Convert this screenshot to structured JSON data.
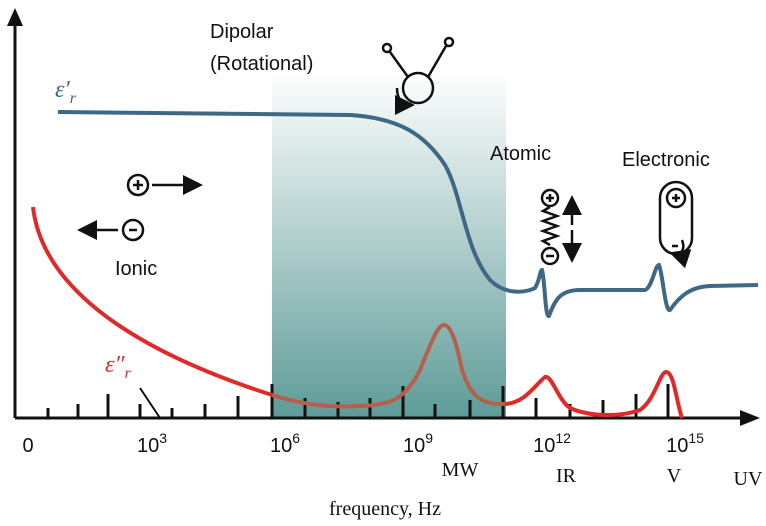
{
  "labels": {
    "dipolar": "Dipolar",
    "rotational": "(Rotational)",
    "atomic": "Atomic",
    "electronic": "Electronic",
    "ionic": "Ionic"
  },
  "eps_real": {
    "text": "ε′",
    "sub": "r"
  },
  "eps_imag": {
    "text": "ε″",
    "sub": "r"
  },
  "x_axis": {
    "zero_label": "0",
    "power_labels": [
      {
        "base": "10",
        "exp": "3"
      },
      {
        "base": "10",
        "exp": "6"
      },
      {
        "base": "10",
        "exp": "9"
      },
      {
        "base": "10",
        "exp": "12"
      },
      {
        "base": "10",
        "exp": "15"
      }
    ],
    "bands": [
      "MW",
      "IR",
      "V",
      "UV"
    ],
    "title": "frequency, Hz"
  }
}
